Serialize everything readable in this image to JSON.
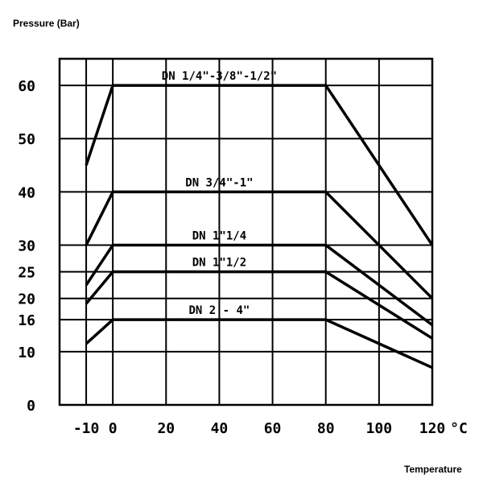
{
  "chart_data": {
    "type": "line",
    "title": "",
    "ylabel": "Pressure (Bar)",
    "xlabel": "Temperature",
    "x_unit": "°C",
    "xlim": [
      -20,
      120
    ],
    "ylim": [
      0,
      65
    ],
    "grid": true,
    "x_ticks": [
      -10,
      0,
      20,
      40,
      60,
      80,
      100,
      120
    ],
    "x_tick_labels": [
      "-10",
      "0",
      "20",
      "40",
      "60",
      "80",
      "100",
      "120"
    ],
    "y_ticks": [
      0,
      10,
      16,
      20,
      25,
      30,
      40,
      50,
      60
    ],
    "y_tick_labels": [
      "0",
      "10",
      "16",
      "20",
      "25",
      "30",
      "40",
      "50",
      "60"
    ],
    "series": [
      {
        "name": "DN 1/4\"-3/8\"-1/2\"",
        "points": [
          [
            -10,
            45
          ],
          [
            0,
            60
          ],
          [
            80,
            60
          ],
          [
            120,
            30
          ]
        ]
      },
      {
        "name": "DN 3/4\"-1\"",
        "points": [
          [
            -10,
            30
          ],
          [
            0,
            40
          ],
          [
            80,
            40
          ],
          [
            120,
            20
          ]
        ]
      },
      {
        "name": "DN 1\"1/4",
        "points": [
          [
            -10,
            22.5
          ],
          [
            0,
            30
          ],
          [
            80,
            30
          ],
          [
            120,
            15
          ]
        ]
      },
      {
        "name": "DN 1\"1/2",
        "points": [
          [
            -10,
            19
          ],
          [
            0,
            25
          ],
          [
            80,
            25
          ],
          [
            120,
            12.5
          ]
        ]
      },
      {
        "name": "DN 2 - 4\"",
        "points": [
          [
            -10,
            11.5
          ],
          [
            0,
            16
          ],
          [
            80,
            16
          ],
          [
            120,
            7
          ]
        ]
      }
    ]
  }
}
